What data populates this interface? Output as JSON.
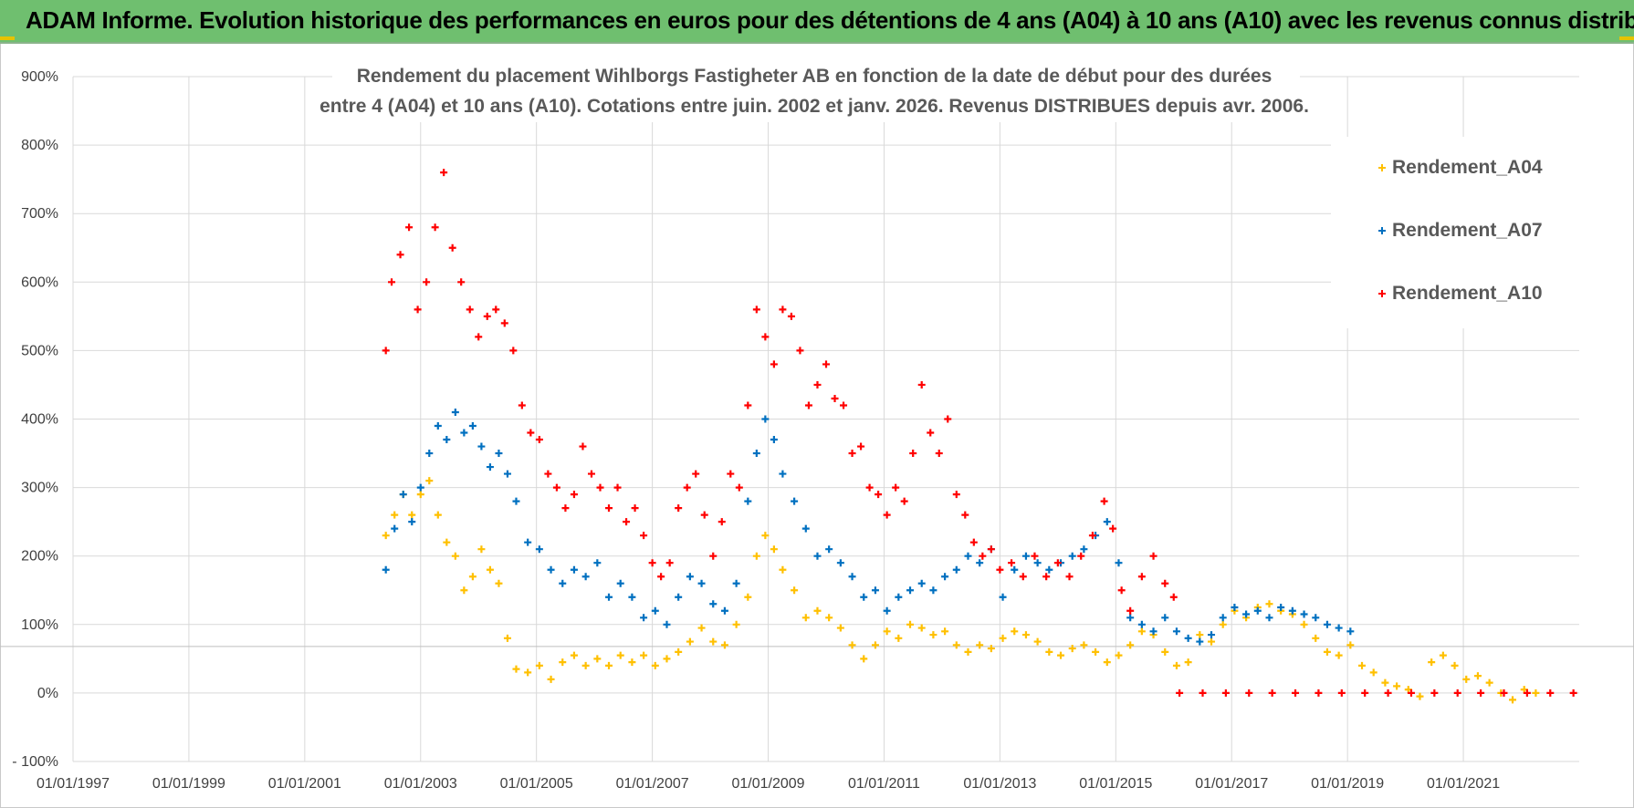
{
  "header": {
    "title": "ADAM Informe. Evolution historique des performances en euros pour des détentions de 4 ans (A04) à 10 ans (A10) avec les revenus connus distribués"
  },
  "colors": {
    "banner": "#6fbf6f",
    "a04": "#ffc000",
    "a07": "#0070c0",
    "a10": "#ff0000",
    "grid": "#d9d9d9"
  },
  "chart_data": {
    "type": "scatter",
    "title_line1": "Rendement du placement Wihlborgs Fastigheter AB en fonction de la date de début pour des durées",
    "title_line2": "entre 4 (A04) et 10 ans (A10).  Cotations entre juin. 2002 et janv. 2026. Revenus DISTRIBUES depuis avr. 2006.",
    "xlabel": "",
    "ylabel": "",
    "xlim": [
      1997.0,
      2023.0
    ],
    "ylim": [
      -100,
      900
    ],
    "yticks": [
      "- 100%",
      "0%",
      "100%",
      "200%",
      "300%",
      "400%",
      "500%",
      "600%",
      "700%",
      "800%",
      "900%"
    ],
    "xticks": [
      "01/01/1997",
      "01/01/1999",
      "01/01/2001",
      "01/01/2003",
      "01/01/2005",
      "01/01/2007",
      "01/01/2009",
      "01/01/2011",
      "01/01/2013",
      "01/01/2015",
      "01/01/2017",
      "01/01/2019",
      "01/01/2021"
    ],
    "legend_position": "top-right",
    "series": [
      {
        "name": "Rendement_A04",
        "marker": "+",
        "points": [
          [
            2002.4,
            230
          ],
          [
            2002.55,
            260
          ],
          [
            2002.7,
            290
          ],
          [
            2002.85,
            260
          ],
          [
            2003.0,
            290
          ],
          [
            2003.15,
            310
          ],
          [
            2003.3,
            260
          ],
          [
            2003.45,
            220
          ],
          [
            2003.6,
            200
          ],
          [
            2003.75,
            150
          ],
          [
            2003.9,
            170
          ],
          [
            2004.05,
            210
          ],
          [
            2004.2,
            180
          ],
          [
            2004.35,
            160
          ],
          [
            2004.5,
            80
          ],
          [
            2004.65,
            35
          ],
          [
            2004.85,
            30
          ],
          [
            2005.05,
            40
          ],
          [
            2005.25,
            20
          ],
          [
            2005.45,
            45
          ],
          [
            2005.65,
            55
          ],
          [
            2005.85,
            40
          ],
          [
            2006.05,
            50
          ],
          [
            2006.25,
            40
          ],
          [
            2006.45,
            55
          ],
          [
            2006.65,
            45
          ],
          [
            2006.85,
            55
          ],
          [
            2007.05,
            40
          ],
          [
            2007.25,
            50
          ],
          [
            2007.45,
            60
          ],
          [
            2007.65,
            75
          ],
          [
            2007.85,
            95
          ],
          [
            2008.05,
            75
          ],
          [
            2008.25,
            70
          ],
          [
            2008.45,
            100
          ],
          [
            2008.65,
            140
          ],
          [
            2008.8,
            200
          ],
          [
            2008.95,
            230
          ],
          [
            2009.1,
            210
          ],
          [
            2009.25,
            180
          ],
          [
            2009.45,
            150
          ],
          [
            2009.65,
            110
          ],
          [
            2009.85,
            120
          ],
          [
            2010.05,
            110
          ],
          [
            2010.25,
            95
          ],
          [
            2010.45,
            70
          ],
          [
            2010.65,
            50
          ],
          [
            2010.85,
            70
          ],
          [
            2011.05,
            90
          ],
          [
            2011.25,
            80
          ],
          [
            2011.45,
            100
          ],
          [
            2011.65,
            95
          ],
          [
            2011.85,
            85
          ],
          [
            2012.05,
            90
          ],
          [
            2012.25,
            70
          ],
          [
            2012.45,
            60
          ],
          [
            2012.65,
            70
          ],
          [
            2012.85,
            65
          ],
          [
            2013.05,
            80
          ],
          [
            2013.25,
            90
          ],
          [
            2013.45,
            85
          ],
          [
            2013.65,
            75
          ],
          [
            2013.85,
            60
          ],
          [
            2014.05,
            55
          ],
          [
            2014.25,
            65
          ],
          [
            2014.45,
            70
          ],
          [
            2014.65,
            60
          ],
          [
            2014.85,
            45
          ],
          [
            2015.05,
            55
          ],
          [
            2015.25,
            70
          ],
          [
            2015.45,
            90
          ],
          [
            2015.65,
            85
          ],
          [
            2015.85,
            60
          ],
          [
            2016.05,
            40
          ],
          [
            2016.25,
            45
          ],
          [
            2016.45,
            85
          ],
          [
            2016.65,
            75
          ],
          [
            2016.85,
            100
          ],
          [
            2017.05,
            120
          ],
          [
            2017.25,
            110
          ],
          [
            2017.45,
            125
          ],
          [
            2017.65,
            130
          ],
          [
            2017.85,
            120
          ],
          [
            2018.05,
            115
          ],
          [
            2018.25,
            100
          ],
          [
            2018.45,
            80
          ],
          [
            2018.65,
            60
          ],
          [
            2018.85,
            55
          ],
          [
            2019.05,
            70
          ],
          [
            2019.25,
            40
          ],
          [
            2019.45,
            30
          ],
          [
            2019.65,
            15
          ],
          [
            2019.85,
            10
          ],
          [
            2020.05,
            5
          ],
          [
            2020.25,
            -5
          ],
          [
            2020.45,
            45
          ],
          [
            2020.65,
            55
          ],
          [
            2020.85,
            40
          ],
          [
            2021.05,
            20
          ],
          [
            2021.25,
            25
          ],
          [
            2021.45,
            15
          ],
          [
            2021.65,
            0
          ],
          [
            2021.85,
            -10
          ],
          [
            2022.05,
            5
          ],
          [
            2022.25,
            0
          ]
        ]
      },
      {
        "name": "Rendement_A07",
        "marker": "+",
        "points": [
          [
            2002.4,
            180
          ],
          [
            2002.55,
            240
          ],
          [
            2002.7,
            290
          ],
          [
            2002.85,
            250
          ],
          [
            2003.0,
            300
          ],
          [
            2003.15,
            350
          ],
          [
            2003.3,
            390
          ],
          [
            2003.45,
            370
          ],
          [
            2003.6,
            410
          ],
          [
            2003.75,
            380
          ],
          [
            2003.9,
            390
          ],
          [
            2004.05,
            360
          ],
          [
            2004.2,
            330
          ],
          [
            2004.35,
            350
          ],
          [
            2004.5,
            320
          ],
          [
            2004.65,
            280
          ],
          [
            2004.85,
            220
          ],
          [
            2005.05,
            210
          ],
          [
            2005.25,
            180
          ],
          [
            2005.45,
            160
          ],
          [
            2005.65,
            180
          ],
          [
            2005.85,
            170
          ],
          [
            2006.05,
            190
          ],
          [
            2006.25,
            140
          ],
          [
            2006.45,
            160
          ],
          [
            2006.65,
            140
          ],
          [
            2006.85,
            110
          ],
          [
            2007.05,
            120
          ],
          [
            2007.25,
            100
          ],
          [
            2007.45,
            140
          ],
          [
            2007.65,
            170
          ],
          [
            2007.85,
            160
          ],
          [
            2008.05,
            130
          ],
          [
            2008.25,
            120
          ],
          [
            2008.45,
            160
          ],
          [
            2008.65,
            280
          ],
          [
            2008.8,
            350
          ],
          [
            2008.95,
            400
          ],
          [
            2009.1,
            370
          ],
          [
            2009.25,
            320
          ],
          [
            2009.45,
            280
          ],
          [
            2009.65,
            240
          ],
          [
            2009.85,
            200
          ],
          [
            2010.05,
            210
          ],
          [
            2010.25,
            190
          ],
          [
            2010.45,
            170
          ],
          [
            2010.65,
            140
          ],
          [
            2010.85,
            150
          ],
          [
            2011.05,
            120
          ],
          [
            2011.25,
            140
          ],
          [
            2011.45,
            150
          ],
          [
            2011.65,
            160
          ],
          [
            2011.85,
            150
          ],
          [
            2012.05,
            170
          ],
          [
            2012.25,
            180
          ],
          [
            2012.45,
            200
          ],
          [
            2012.65,
            190
          ],
          [
            2012.85,
            210
          ],
          [
            2013.05,
            140
          ],
          [
            2013.25,
            180
          ],
          [
            2013.45,
            200
          ],
          [
            2013.65,
            190
          ],
          [
            2013.85,
            180
          ],
          [
            2014.05,
            190
          ],
          [
            2014.25,
            200
          ],
          [
            2014.45,
            210
          ],
          [
            2014.65,
            230
          ],
          [
            2014.85,
            250
          ],
          [
            2015.05,
            190
          ],
          [
            2015.25,
            110
          ],
          [
            2015.45,
            100
          ],
          [
            2015.65,
            90
          ],
          [
            2015.85,
            110
          ],
          [
            2016.05,
            90
          ],
          [
            2016.25,
            80
          ],
          [
            2016.45,
            75
          ],
          [
            2016.65,
            85
          ],
          [
            2016.85,
            110
          ],
          [
            2017.05,
            125
          ],
          [
            2017.25,
            115
          ],
          [
            2017.45,
            120
          ],
          [
            2017.65,
            110
          ],
          [
            2017.85,
            125
          ],
          [
            2018.05,
            120
          ],
          [
            2018.25,
            115
          ],
          [
            2018.45,
            110
          ],
          [
            2018.65,
            100
          ],
          [
            2018.85,
            95
          ],
          [
            2019.05,
            90
          ]
        ]
      },
      {
        "name": "Rendement_A10",
        "marker": "+",
        "points": [
          [
            2002.4,
            500
          ],
          [
            2002.5,
            600
          ],
          [
            2002.65,
            640
          ],
          [
            2002.8,
            680
          ],
          [
            2002.95,
            560
          ],
          [
            2003.1,
            600
          ],
          [
            2003.25,
            680
          ],
          [
            2003.4,
            760
          ],
          [
            2003.55,
            650
          ],
          [
            2003.7,
            600
          ],
          [
            2003.85,
            560
          ],
          [
            2004.0,
            520
          ],
          [
            2004.15,
            550
          ],
          [
            2004.3,
            560
          ],
          [
            2004.45,
            540
          ],
          [
            2004.6,
            500
          ],
          [
            2004.75,
            420
          ],
          [
            2004.9,
            380
          ],
          [
            2005.05,
            370
          ],
          [
            2005.2,
            320
          ],
          [
            2005.35,
            300
          ],
          [
            2005.5,
            270
          ],
          [
            2005.65,
            290
          ],
          [
            2005.8,
            360
          ],
          [
            2005.95,
            320
          ],
          [
            2006.1,
            300
          ],
          [
            2006.25,
            270
          ],
          [
            2006.4,
            300
          ],
          [
            2006.55,
            250
          ],
          [
            2006.7,
            270
          ],
          [
            2006.85,
            230
          ],
          [
            2007.0,
            190
          ],
          [
            2007.15,
            170
          ],
          [
            2007.3,
            190
          ],
          [
            2007.45,
            270
          ],
          [
            2007.6,
            300
          ],
          [
            2007.75,
            320
          ],
          [
            2007.9,
            260
          ],
          [
            2008.05,
            200
          ],
          [
            2008.2,
            250
          ],
          [
            2008.35,
            320
          ],
          [
            2008.5,
            300
          ],
          [
            2008.65,
            420
          ],
          [
            2008.8,
            560
          ],
          [
            2008.95,
            520
          ],
          [
            2009.1,
            480
          ],
          [
            2009.25,
            560
          ],
          [
            2009.4,
            550
          ],
          [
            2009.55,
            500
          ],
          [
            2009.7,
            420
          ],
          [
            2009.85,
            450
          ],
          [
            2010.0,
            480
          ],
          [
            2010.15,
            430
          ],
          [
            2010.3,
            420
          ],
          [
            2010.45,
            350
          ],
          [
            2010.6,
            360
          ],
          [
            2010.75,
            300
          ],
          [
            2010.9,
            290
          ],
          [
            2011.05,
            260
          ],
          [
            2011.2,
            300
          ],
          [
            2011.35,
            280
          ],
          [
            2011.5,
            350
          ],
          [
            2011.65,
            450
          ],
          [
            2011.8,
            380
          ],
          [
            2011.95,
            350
          ],
          [
            2012.1,
            400
          ],
          [
            2012.25,
            290
          ],
          [
            2012.4,
            260
          ],
          [
            2012.55,
            220
          ],
          [
            2012.7,
            200
          ],
          [
            2012.85,
            210
          ],
          [
            2013.0,
            180
          ],
          [
            2013.2,
            190
          ],
          [
            2013.4,
            170
          ],
          [
            2013.6,
            200
          ],
          [
            2013.8,
            170
          ],
          [
            2014.0,
            190
          ],
          [
            2014.2,
            170
          ],
          [
            2014.4,
            200
          ],
          [
            2014.6,
            230
          ],
          [
            2014.8,
            280
          ],
          [
            2014.95,
            240
          ],
          [
            2015.1,
            150
          ],
          [
            2015.25,
            120
          ],
          [
            2015.45,
            170
          ],
          [
            2015.65,
            200
          ],
          [
            2015.85,
            160
          ],
          [
            2016.0,
            140
          ],
          [
            2016.1,
            0
          ],
          [
            2016.5,
            0
          ],
          [
            2016.9,
            0
          ],
          [
            2017.3,
            0
          ],
          [
            2017.7,
            0
          ],
          [
            2018.1,
            0
          ],
          [
            2018.5,
            0
          ],
          [
            2018.9,
            0
          ],
          [
            2019.3,
            0
          ],
          [
            2019.7,
            0
          ],
          [
            2020.1,
            0
          ],
          [
            2020.5,
            0
          ],
          [
            2020.9,
            0
          ],
          [
            2021.3,
            0
          ],
          [
            2021.7,
            0
          ],
          [
            2022.1,
            0
          ],
          [
            2022.5,
            0
          ],
          [
            2022.9,
            0
          ]
        ]
      }
    ]
  }
}
